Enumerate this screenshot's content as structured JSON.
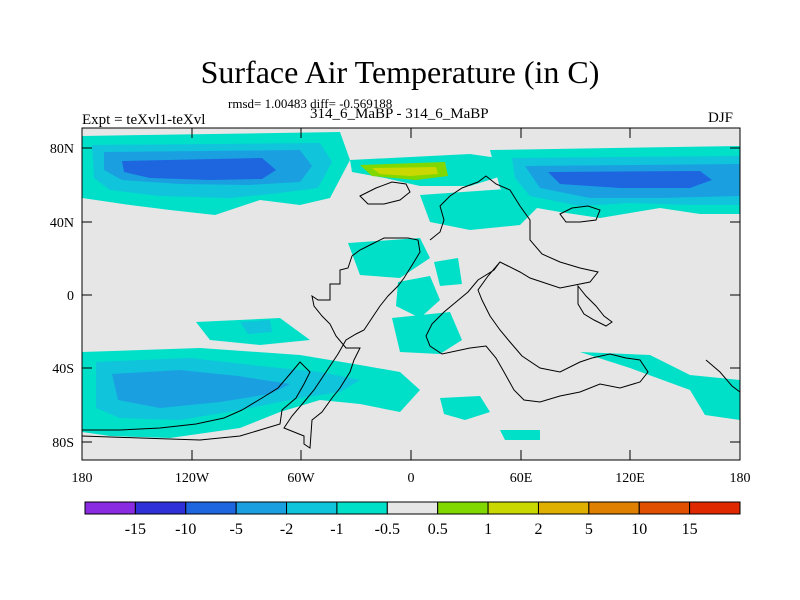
{
  "map": {
    "title": "Surface Air Temperature (in C)",
    "stats": "rmsd= 1.00483 diff= -0.569188",
    "experiment": "Expt = teXvl1-teXvl",
    "period": "314_6_MaBP - 314_6_MaBP",
    "season": "DJF",
    "lat_labels": [
      "80N",
      "40N",
      "0",
      "40S",
      "80S"
    ],
    "lon_labels": [
      "180",
      "120W",
      "60W",
      "0",
      "60E",
      "120E",
      "180"
    ]
  },
  "colorbar": {
    "labels": [
      "-15",
      "-10",
      "-5",
      "-2",
      "-1",
      "-0.5",
      "0.5",
      "1",
      "2",
      "5",
      "10",
      "15"
    ],
    "colors": [
      "#8a2be2",
      "#3030d8",
      "#1e66e0",
      "#1aa0e0",
      "#10c4dc",
      "#00e0c8",
      "#e6e6e6",
      "#80d800",
      "#c8d800",
      "#e0b000",
      "#e08000",
      "#e05000",
      "#e02800"
    ]
  },
  "palette": {
    "background": "#e6e6e6",
    "anomaly_neg1": "#00e0c8",
    "anomaly_neg2": "#10c4dc",
    "anomaly_neg3": "#1aa0e0",
    "anomaly_neg4": "#1e66e0",
    "anomaly_pos1": "#80d800",
    "anomaly_pos2": "#c8d800"
  }
}
